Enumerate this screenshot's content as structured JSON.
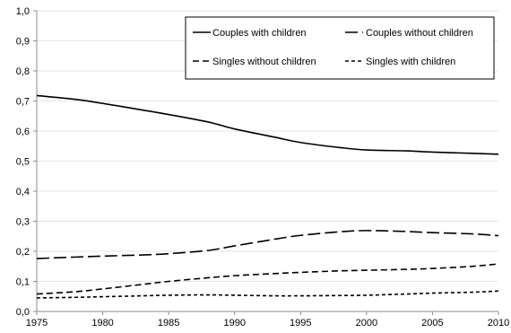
{
  "chart_data": {
    "type": "line",
    "title": "",
    "xlabel": "",
    "ylabel": "",
    "xlim": [
      1975,
      2010
    ],
    "ylim": [
      0,
      1.0
    ],
    "x_ticks": [
      1975,
      1980,
      1985,
      1990,
      1995,
      2000,
      2005,
      2010
    ],
    "x_tick_labels": [
      "1975",
      "1980",
      "1985",
      "1990",
      "1995",
      "2000",
      "2005",
      "2010"
    ],
    "y_ticks": [
      0,
      0.1,
      0.2,
      0.3,
      0.4,
      0.5,
      0.6,
      0.7,
      0.8,
      0.9,
      1.0
    ],
    "y_tick_labels": [
      "0,0",
      "0,1",
      "0,2",
      "0,3",
      "0,4",
      "0,5",
      "0,6",
      "0,7",
      "0,8",
      "0,9",
      "1,0"
    ],
    "grid": true,
    "legend_placement": "top-right",
    "x": [
      1975,
      1978,
      1980,
      1983,
      1985,
      1988,
      1990,
      1993,
      1995,
      1998,
      2000,
      2003,
      2005,
      2008,
      2010
    ],
    "series": [
      {
        "name": "Couples with children",
        "dash": "solid",
        "values": [
          0.718,
          0.705,
          0.692,
          0.67,
          0.655,
          0.63,
          0.607,
          0.58,
          0.562,
          0.545,
          0.537,
          0.534,
          0.53,
          0.526,
          0.523
        ]
      },
      {
        "name": "Couples without children",
        "dash": "long-dash",
        "values": [
          0.176,
          0.181,
          0.184,
          0.188,
          0.192,
          0.203,
          0.218,
          0.24,
          0.253,
          0.265,
          0.269,
          0.266,
          0.262,
          0.258,
          0.252
        ]
      },
      {
        "name": "Singles without children",
        "dash": "dash",
        "values": [
          0.058,
          0.066,
          0.075,
          0.09,
          0.1,
          0.112,
          0.119,
          0.126,
          0.13,
          0.135,
          0.137,
          0.14,
          0.143,
          0.15,
          0.158
        ]
      },
      {
        "name": "Singles with children",
        "dash": "short-dash",
        "values": [
          0.045,
          0.047,
          0.049,
          0.052,
          0.054,
          0.055,
          0.054,
          0.052,
          0.052,
          0.053,
          0.054,
          0.058,
          0.061,
          0.064,
          0.068
        ]
      }
    ]
  }
}
